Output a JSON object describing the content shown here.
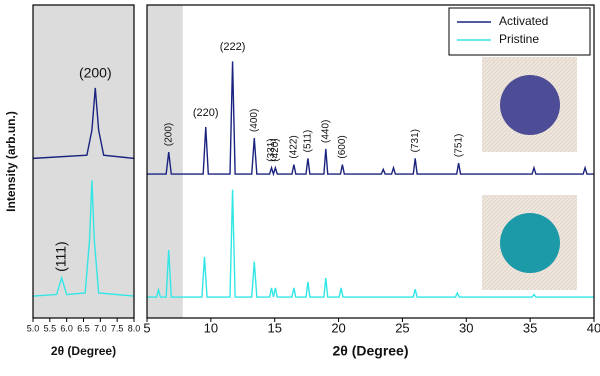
{
  "chart_data": [
    {
      "type": "line",
      "xlabel": "2θ (Degree)",
      "ylabel": "Intensity (arb.un.)",
      "xlim": [
        5,
        8
      ],
      "ylim": [
        0,
        100
      ],
      "xticks": [
        {
          "value": 5,
          "label": "5.0"
        },
        5.5,
        {
          "value": 6,
          "label": "6.0"
        },
        6.5,
        {
          "value": 7,
          "label": "7.0"
        },
        7.5,
        {
          "value": 8,
          "label": "8.0"
        }
      ],
      "shade_xrange": [
        5,
        8
      ],
      "shade_color": "#dcdcdc",
      "legend": false,
      "series": [
        {
          "name": "Activated",
          "color": "#1a237e",
          "x": [
            5,
            6.6,
            6.75,
            6.85,
            6.95,
            7.1,
            8
          ],
          "values": [
            51,
            52,
            60,
            73.5,
            60,
            52,
            51
          ]
        },
        {
          "name": "Pristine",
          "color": "#33e6e6",
          "x": [
            5,
            5.7,
            5.85,
            6.0,
            6.55,
            6.68,
            6.75,
            6.82,
            6.95,
            8
          ],
          "values": [
            7,
            7.5,
            12.8,
            7.5,
            8,
            25,
            44,
            25,
            8,
            7
          ]
        }
      ],
      "annotations": [
        {
          "text": "(200)",
          "x": 6.85,
          "series": "Activated",
          "rotated": false
        },
        {
          "text": "(111)",
          "x": 5.85,
          "series": "Pristine",
          "rotated": true
        }
      ]
    },
    {
      "type": "line",
      "xlabel": "2θ (Degree)",
      "xlim": [
        5,
        40
      ],
      "ylim": [
        0,
        100
      ],
      "xticks": [
        5,
        10,
        15,
        20,
        25,
        30,
        35,
        40
      ],
      "shade_xrange": [
        5,
        7.8
      ],
      "shade_color": "#dcdcdc",
      "legend": "upper right",
      "series": [
        {
          "name": "Activated",
          "color": "#1a237e",
          "x": [
            5,
            6.5,
            6.7,
            6.9,
            9.4,
            9.6,
            9.8,
            11.5,
            11.7,
            11.9,
            13.2,
            13.4,
            13.6,
            14.6,
            14.75,
            14.9,
            15.05,
            15.2,
            16.35,
            16.5,
            16.65,
            17.45,
            17.6,
            17.75,
            18.85,
            19.0,
            19.15,
            20.15,
            20.3,
            20.45,
            23.35,
            23.5,
            23.65,
            24.15,
            24.3,
            24.45,
            25.85,
            26.0,
            26.15,
            29.25,
            29.4,
            29.55,
            35.15,
            35.3,
            35.45,
            39.15,
            39.3,
            39.45,
            40
          ],
          "values": [
            46,
            46,
            53,
            46,
            46,
            61,
            46,
            46,
            82,
            46,
            46,
            57.5,
            46,
            46,
            48,
            46,
            48,
            46,
            46,
            49,
            46,
            46,
            51,
            46,
            46,
            54,
            46,
            46,
            49,
            46,
            46,
            47.5,
            46,
            46,
            48,
            46,
            46,
            51,
            46,
            46,
            49.5,
            46,
            46,
            48,
            46,
            46,
            48,
            46,
            46
          ]
        },
        {
          "name": "Pristine",
          "color": "#33e6e6",
          "x": [
            5,
            5.75,
            5.9,
            6.05,
            6.5,
            6.7,
            6.9,
            9.3,
            9.5,
            9.7,
            11.5,
            11.7,
            11.9,
            13.2,
            13.4,
            13.6,
            14.6,
            14.75,
            14.9,
            15.05,
            15.2,
            16.35,
            16.5,
            16.65,
            17.45,
            17.6,
            17.75,
            18.85,
            19.0,
            19.15,
            20.05,
            20.2,
            20.35,
            25.85,
            26.0,
            26.15,
            29.15,
            29.3,
            29.45,
            35.15,
            35.3,
            35.45,
            40
          ],
          "values": [
            6.7,
            6.7,
            9,
            6.7,
            6.7,
            21.7,
            6.7,
            6.7,
            19.5,
            6.7,
            6.7,
            41,
            6.7,
            6.7,
            18,
            6.7,
            6.7,
            9.6,
            6.7,
            9.6,
            6.7,
            6.7,
            9.6,
            6.7,
            6.7,
            11.5,
            6.7,
            6.7,
            12.8,
            6.7,
            6.7,
            9.6,
            6.7,
            6.7,
            9.2,
            6.7,
            6.7,
            8,
            6.7,
            6.7,
            7.5,
            6.7,
            6.7
          ]
        }
      ],
      "annotations": [
        {
          "text": "(200)",
          "x": 6.7,
          "rotated": true
        },
        {
          "text": "(220)",
          "x": 9.6,
          "rotated": false
        },
        {
          "text": "(222)",
          "x": 11.7,
          "rotated": false
        },
        {
          "text": "(400)",
          "x": 13.4,
          "rotated": true
        },
        {
          "text": "(331)",
          "x": 14.75,
          "rotated": true
        },
        {
          "text": "(420)",
          "x": 15.05,
          "rotated": true
        },
        {
          "text": "(422)",
          "x": 16.5,
          "rotated": true
        },
        {
          "text": "(511)",
          "x": 17.6,
          "rotated": true
        },
        {
          "text": "(440)",
          "x": 19.0,
          "rotated": true
        },
        {
          "text": "(600)",
          "x": 20.3,
          "rotated": true
        },
        {
          "text": "(731)",
          "x": 26.0,
          "rotated": true
        },
        {
          "text": "(751)",
          "x": 29.4,
          "rotated": true
        }
      ]
    }
  ]
}
